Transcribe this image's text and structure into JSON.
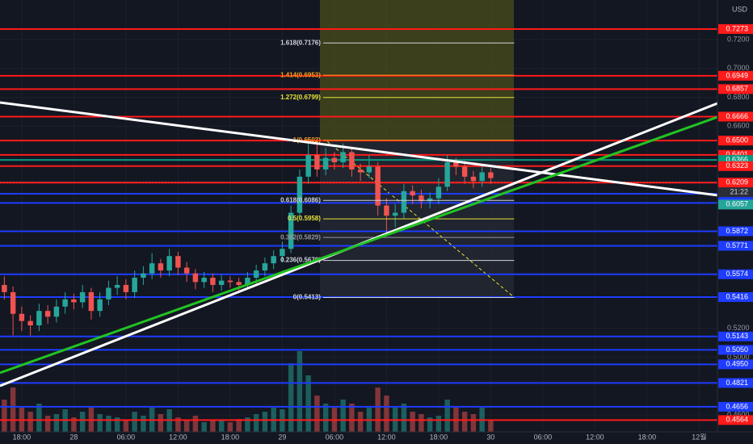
{
  "chart_data": {
    "type": "candlestick",
    "currency": "USD",
    "countdown": "21:22",
    "xlim": [
      -2.5,
      80.1
    ],
    "xticks": [
      {
        "value": 0,
        "label": "18:00"
      },
      {
        "value": 6,
        "label": "28"
      },
      {
        "value": 12,
        "label": "06:00"
      },
      {
        "value": 18,
        "label": "12:00"
      },
      {
        "value": 24,
        "label": "18:00"
      },
      {
        "value": 30,
        "label": "29"
      },
      {
        "value": 36,
        "label": "06:00"
      },
      {
        "value": 42,
        "label": "12:00"
      },
      {
        "value": 48,
        "label": "18:00"
      },
      {
        "value": 54,
        "label": "30"
      },
      {
        "value": 60,
        "label": "06:00"
      },
      {
        "value": 66,
        "label": "12:00"
      },
      {
        "value": 72,
        "label": "18:00"
      },
      {
        "value": 78,
        "label": "12월"
      }
    ],
    "ylim": [
      0.4482,
      0.7474
    ],
    "yticks": [
      {
        "value": 0.72,
        "label": "0.7200"
      },
      {
        "value": 0.7,
        "label": "0.7000"
      },
      {
        "value": 0.68,
        "label": "0.6800"
      },
      {
        "value": 0.66,
        "label": "0.6600"
      },
      {
        "value": 0.52,
        "label": "0.5200"
      },
      {
        "value": 0.5,
        "label": "0.5000"
      },
      {
        "value": 0.46,
        "label": "0.4600"
      }
    ],
    "up_color": "#26a69a",
    "down_color": "#ef5350",
    "candles": {
      "x": [
        -2,
        -1,
        0,
        1,
        2,
        3,
        4,
        5,
        6,
        7,
        8,
        9,
        10,
        11,
        12,
        13,
        14,
        15,
        16,
        17,
        18,
        19,
        20,
        21,
        22,
        23,
        24,
        25,
        26,
        27,
        28,
        29,
        30,
        31,
        32,
        33,
        34,
        35,
        36,
        37,
        38,
        39,
        40,
        41,
        42,
        43,
        44,
        45,
        46,
        47,
        48,
        49,
        50,
        51,
        52,
        53,
        54
      ],
      "open": [
        0.55,
        0.545,
        0.53,
        0.525,
        0.522,
        0.532,
        0.528,
        0.535,
        0.54,
        0.538,
        0.545,
        0.532,
        0.54,
        0.548,
        0.55,
        0.545,
        0.555,
        0.558,
        0.565,
        0.56,
        0.57,
        0.562,
        0.558,
        0.552,
        0.555,
        0.55,
        0.553,
        0.552,
        0.55,
        0.555,
        0.56,
        0.565,
        0.57,
        0.575,
        0.6,
        0.625,
        0.64,
        0.63,
        0.638,
        0.635,
        0.642,
        0.63,
        0.628,
        0.632,
        0.605,
        0.598,
        0.6,
        0.615,
        0.612,
        0.608,
        0.61,
        0.618,
        0.635,
        0.632,
        0.625,
        0.622,
        0.628
      ],
      "high": [
        0.556,
        0.549,
        0.535,
        0.529,
        0.537,
        0.536,
        0.54,
        0.545,
        0.544,
        0.55,
        0.548,
        0.545,
        0.553,
        0.556,
        0.554,
        0.56,
        0.563,
        0.572,
        0.568,
        0.575,
        0.573,
        0.566,
        0.561,
        0.559,
        0.558,
        0.557,
        0.556,
        0.555,
        0.559,
        0.564,
        0.569,
        0.574,
        0.58,
        0.605,
        0.63,
        0.652,
        0.648,
        0.645,
        0.642,
        0.648,
        0.645,
        0.634,
        0.64,
        0.635,
        0.61,
        0.606,
        0.62,
        0.619,
        0.616,
        0.614,
        0.624,
        0.64,
        0.638,
        0.636,
        0.629,
        0.633,
        0.631
      ],
      "low": [
        0.54,
        0.515,
        0.518,
        0.515,
        0.518,
        0.523,
        0.524,
        0.53,
        0.533,
        0.534,
        0.526,
        0.528,
        0.536,
        0.543,
        0.54,
        0.541,
        0.55,
        0.554,
        0.555,
        0.556,
        0.557,
        0.552,
        0.547,
        0.548,
        0.545,
        0.546,
        0.548,
        0.546,
        0.547,
        0.551,
        0.556,
        0.561,
        0.566,
        0.572,
        0.597,
        0.62,
        0.625,
        0.626,
        0.63,
        0.631,
        0.625,
        0.622,
        0.624,
        0.598,
        0.585,
        0.59,
        0.596,
        0.606,
        0.603,
        0.603,
        0.606,
        0.615,
        0.626,
        0.62,
        0.617,
        0.618,
        0.62
      ],
      "close": [
        0.545,
        0.53,
        0.525,
        0.522,
        0.532,
        0.528,
        0.535,
        0.54,
        0.538,
        0.545,
        0.532,
        0.54,
        0.548,
        0.55,
        0.545,
        0.555,
        0.558,
        0.565,
        0.56,
        0.57,
        0.562,
        0.558,
        0.552,
        0.555,
        0.55,
        0.553,
        0.552,
        0.55,
        0.555,
        0.56,
        0.565,
        0.57,
        0.575,
        0.6,
        0.625,
        0.64,
        0.63,
        0.638,
        0.635,
        0.642,
        0.63,
        0.628,
        0.632,
        0.605,
        0.598,
        0.6,
        0.615,
        0.612,
        0.608,
        0.61,
        0.618,
        0.635,
        0.632,
        0.625,
        0.622,
        0.628,
        0.624
      ],
      "volume": [
        40,
        55,
        30,
        25,
        35,
        20,
        22,
        28,
        18,
        25,
        30,
        22,
        20,
        18,
        15,
        25,
        20,
        30,
        22,
        28,
        18,
        15,
        20,
        12,
        15,
        14,
        12,
        16,
        18,
        22,
        25,
        30,
        28,
        85,
        100,
        70,
        45,
        35,
        30,
        40,
        35,
        25,
        30,
        55,
        45,
        30,
        35,
        25,
        22,
        18,
        20,
        40,
        30,
        25,
        22,
        30,
        15
      ]
    },
    "volume_lim": [
      0,
      140
    ],
    "levels": [
      {
        "value": 0.7273,
        "color": "#ff1a1a"
      },
      {
        "value": 0.6949,
        "color": "#ff1a1a"
      },
      {
        "value": 0.6857,
        "color": "#ff1a1a"
      },
      {
        "value": 0.6666,
        "color": "#ff1a1a"
      },
      {
        "value": 0.65,
        "label": "0.6500",
        "color": "#ff1a1a"
      },
      {
        "value": 0.6401,
        "color": "#ff1a1a"
      },
      {
        "value": 0.6366,
        "color": "#089981"
      },
      {
        "value": 0.6323,
        "color": "#ff1a1a"
      },
      {
        "value": 0.6212,
        "color": "#b2b5be",
        "box": false
      },
      {
        "value": 0.6209,
        "color": "#ff1a1a"
      },
      {
        "value": 0.6132,
        "color": "#1e3cff"
      },
      {
        "value": 0.6068,
        "color": "#1e3cff"
      },
      {
        "value": 0.6057,
        "color": "#26a69a",
        "line": false
      },
      {
        "value": 0.5872,
        "color": "#1e3cff"
      },
      {
        "value": 0.5771,
        "color": "#1e3cff"
      },
      {
        "value": 0.5574,
        "color": "#1e3cff"
      },
      {
        "value": 0.5416,
        "color": "#1e3cff"
      },
      {
        "value": 0.5143,
        "color": "#1e3cff"
      },
      {
        "value": 0.505,
        "label": "0.5050",
        "color": "#1e3cff"
      },
      {
        "value": 0.495,
        "label": "0.4950",
        "color": "#1e3cff"
      },
      {
        "value": 0.4821,
        "color": "#1e3cff"
      },
      {
        "value": 0.4656,
        "color": "#1e3cff"
      },
      {
        "value": 0.4564,
        "color": "#ff1a1a"
      }
    ],
    "fib_x": [
      34.7,
      56.7
    ],
    "fib": [
      {
        "label": "1.618(0.7176)",
        "value": 0.7176,
        "color": "#d1d4dc"
      },
      {
        "label": "1.414(0.6953)",
        "value": 0.6953,
        "color": "#f7a21b"
      },
      {
        "label": "1.272(0.6799)",
        "value": 0.6799,
        "color": "#e8e337"
      },
      {
        "label": "1(0.6502)",
        "value": 0.6502,
        "color": "#f7a21b"
      },
      {
        "label": "0.618(0.6086)",
        "value": 0.6086,
        "color": "#d1d4dc"
      },
      {
        "label": "0.5(0.5958)",
        "value": 0.5958,
        "color": "#e8e337"
      },
      {
        "label": "0.382(0.5829)",
        "value": 0.5829,
        "color": "#9598a1"
      },
      {
        "label": "0.236(0.5670)",
        "value": 0.567,
        "color": "#d1d4dc"
      },
      {
        "label": "0(0.5413)",
        "value": 0.5413,
        "color": "#d1d4dc"
      }
    ],
    "trendlines": [
      {
        "color": "#ffffff",
        "x": [
          -2.5,
          80.1
        ],
        "y": [
          0.6764,
          0.6121
        ]
      },
      {
        "color": "#ffffff",
        "x": [
          -2.5,
          80.1
        ],
        "y": [
          0.4801,
          0.6758
        ]
      },
      {
        "color": "#22c322",
        "x": [
          -2.5,
          80.1
        ],
        "y": [
          0.4891,
          0.6663
        ]
      }
    ]
  }
}
